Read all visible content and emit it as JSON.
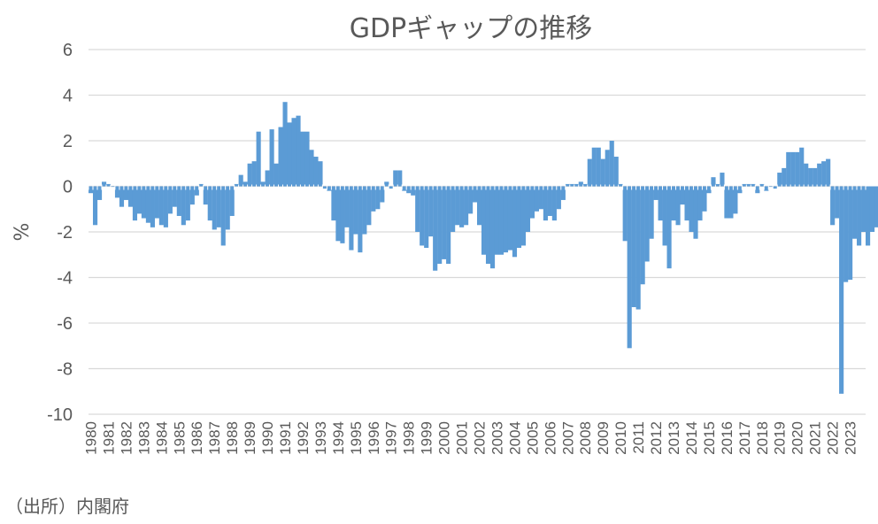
{
  "chart_data": {
    "type": "bar",
    "title": "GDPギャップの推移",
    "xlabel": "",
    "ylabel": "%",
    "ylim": [
      -10,
      6
    ],
    "yticks": [
      6,
      4,
      2,
      0,
      -2,
      -4,
      -6,
      -8,
      -10
    ],
    "grid": true,
    "legend": "none",
    "bar_color": "#5b9bd5",
    "x_tick_labels": [
      "1980",
      "1981",
      "1982",
      "1983",
      "1984",
      "1985",
      "1986",
      "1987",
      "1988",
      "1989",
      "1990",
      "1991",
      "1992",
      "1993",
      "1994",
      "1995",
      "1996",
      "1997",
      "1998",
      "1999",
      "2000",
      "2001",
      "2002",
      "2003",
      "2004",
      "2005",
      "2006",
      "2007",
      "2008",
      "2009",
      "2010",
      "2011",
      "2012",
      "2013",
      "2014",
      "2015",
      "2016",
      "2017",
      "2018",
      "2019",
      "2020",
      "2021",
      "2022",
      "2023"
    ],
    "series": [
      {
        "frequency": "quarterly",
        "start": "1980Q1",
        "values": [
          -0.3,
          -1.7,
          -0.6,
          0.2,
          0.1,
          0.0,
          -0.5,
          -0.9,
          -0.6,
          -0.9,
          -1.5,
          -1.2,
          -1.4,
          -1.6,
          -1.8,
          -1.4,
          -1.7,
          -1.8,
          -1.2,
          -0.9,
          -1.3,
          -1.7,
          -1.5,
          -0.8,
          -0.4,
          0.1,
          -0.8,
          -1.5,
          -1.9,
          -1.8,
          -2.6,
          -1.9,
          -1.3,
          0.1,
          0.5,
          0.2,
          1.0,
          1.1,
          2.4,
          0.2,
          0.7,
          2.5,
          1.0,
          2.6,
          3.7,
          2.8,
          3.0,
          3.1,
          2.4,
          2.4,
          1.6,
          1.3,
          1.1,
          -0.1,
          -0.2,
          -1.5,
          -2.4,
          -2.5,
          -1.8,
          -2.8,
          -2.1,
          -2.9,
          -2.1,
          -1.7,
          -1.1,
          -1.0,
          -0.7,
          0.2,
          -0.1,
          0.7,
          0.7,
          -0.2,
          -0.3,
          -0.4,
          -2.0,
          -2.6,
          -2.7,
          -2.2,
          -3.7,
          -3.4,
          -3.2,
          -3.4,
          -2.0,
          -1.7,
          -1.8,
          -1.7,
          -1.2,
          -0.7,
          -1.7,
          -3.0,
          -3.4,
          -3.6,
          -3.0,
          -3.0,
          -2.9,
          -2.8,
          -3.1,
          -2.7,
          -2.6,
          -2.0,
          -1.4,
          -1.1,
          -1.0,
          -1.5,
          -1.3,
          -1.5,
          -1.0,
          -0.6,
          0.1,
          0.1,
          0.1,
          0.2,
          0.1,
          1.2,
          1.7,
          1.7,
          1.2,
          1.6,
          2.0,
          1.3,
          0.1,
          -2.4,
          -7.1,
          -5.3,
          -5.4,
          -4.3,
          -3.3,
          -2.3,
          -0.6,
          -1.5,
          -2.6,
          -3.6,
          -1.5,
          -1.7,
          -0.8,
          -1.5,
          -2.0,
          -2.3,
          -1.5,
          -1.1,
          -0.3,
          0.4,
          0.1,
          0.6,
          -1.4,
          -1.4,
          -1.2,
          -0.3,
          0.1,
          0.1,
          0.1,
          -0.3,
          0.1,
          -0.2,
          0.0,
          -0.1,
          0.6,
          0.8,
          1.5,
          1.5,
          1.5,
          1.7,
          1.0,
          0.8,
          0.8,
          1.0,
          1.1,
          1.2,
          -1.7,
          -1.4,
          -9.1,
          -4.2,
          -4.1,
          -2.3,
          -2.6,
          -2.0,
          -2.6,
          -2.0,
          -1.8,
          -2.3,
          -1.6,
          -1.6,
          -1.7,
          -0.9,
          0.4,
          0.0
        ]
      }
    ],
    "source": "（出所）内閣府"
  }
}
